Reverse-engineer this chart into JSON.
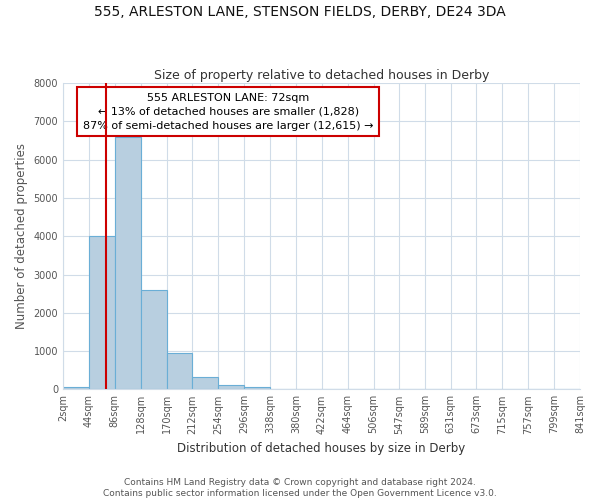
{
  "title": "555, ARLESTON LANE, STENSON FIELDS, DERBY, DE24 3DA",
  "subtitle": "Size of property relative to detached houses in Derby",
  "xlabel": "Distribution of detached houses by size in Derby",
  "ylabel": "Number of detached properties",
  "bin_edges": [
    2,
    44,
    86,
    128,
    170,
    212,
    254,
    296,
    338,
    380,
    422,
    464,
    506,
    547,
    589,
    631,
    673,
    715,
    757,
    799,
    841
  ],
  "bin_values": [
    60,
    4000,
    6600,
    2600,
    950,
    320,
    100,
    60,
    0,
    0,
    0,
    0,
    0,
    0,
    0,
    0,
    0,
    0,
    0,
    0
  ],
  "bar_color": "#b8cfe0",
  "bar_edge_color": "#6aaed6",
  "property_line_x": 72,
  "property_line_color": "#cc0000",
  "annotation_text": "555 ARLESTON LANE: 72sqm\n← 13% of detached houses are smaller (1,828)\n87% of semi-detached houses are larger (12,615) →",
  "annotation_box_color": "#ffffff",
  "annotation_box_edge_color": "#cc0000",
  "ylim": [
    0,
    8000
  ],
  "yticks": [
    0,
    1000,
    2000,
    3000,
    4000,
    5000,
    6000,
    7000,
    8000
  ],
  "tick_labels": [
    "2sqm",
    "44sqm",
    "86sqm",
    "128sqm",
    "170sqm",
    "212sqm",
    "254sqm",
    "296sqm",
    "338sqm",
    "380sqm",
    "422sqm",
    "464sqm",
    "506sqm",
    "547sqm",
    "589sqm",
    "631sqm",
    "673sqm",
    "715sqm",
    "757sqm",
    "799sqm",
    "841sqm"
  ],
  "footer_line1": "Contains HM Land Registry data © Crown copyright and database right 2024.",
  "footer_line2": "Contains public sector information licensed under the Open Government Licence v3.0.",
  "bg_color": "#ffffff",
  "plot_bg_color": "#ffffff",
  "grid_color": "#d0dce8",
  "title_fontsize": 10,
  "subtitle_fontsize": 9,
  "axis_label_fontsize": 8.5,
  "tick_fontsize": 7,
  "footer_fontsize": 6.5,
  "annotation_fontsize": 8
}
